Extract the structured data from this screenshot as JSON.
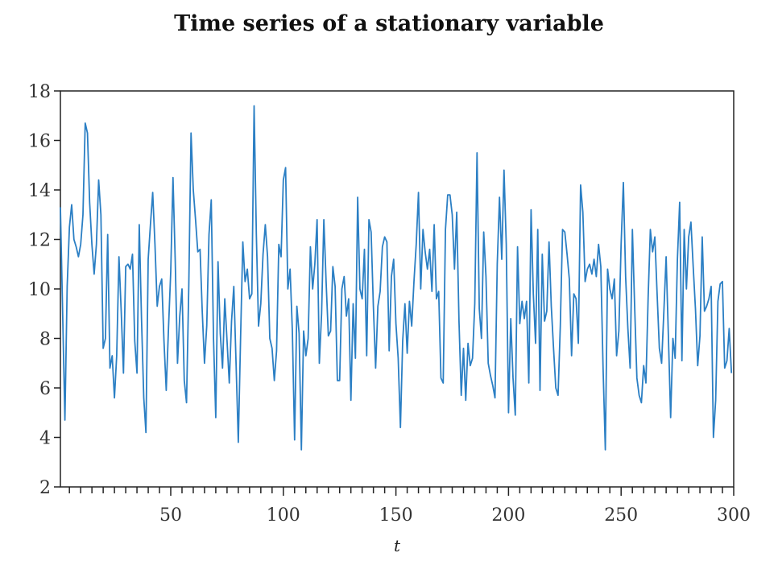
{
  "chart_data": {
    "type": "line",
    "title": "Time series of a stationary variable",
    "xlabel": "t",
    "ylabel": "",
    "xlim": [
      1,
      300
    ],
    "ylim": [
      2,
      18
    ],
    "x_ticks": [
      50,
      100,
      150,
      200,
      250,
      300
    ],
    "y_ticks": [
      2,
      4,
      6,
      8,
      10,
      12,
      14,
      16,
      18
    ],
    "x_minor_tick_step": 5,
    "grid": false,
    "legend": "none",
    "series": [
      {
        "color": "#2b7fc4",
        "x_start": 1,
        "values": [
          13.3,
          9.0,
          4.7,
          10.1,
          12.5,
          13.4,
          12.0,
          11.7,
          11.3,
          11.8,
          13.0,
          16.7,
          16.3,
          13.5,
          11.8,
          10.6,
          11.8,
          14.4,
          13.0,
          7.6,
          8.0,
          12.2,
          6.8,
          7.3,
          5.6,
          7.3,
          11.3,
          9.1,
          6.6,
          10.9,
          11.0,
          10.8,
          11.4,
          7.9,
          6.6,
          12.6,
          8.8,
          5.6,
          4.2,
          11.2,
          12.6,
          13.9,
          11.8,
          9.3,
          10.1,
          10.4,
          7.9,
          5.9,
          8.4,
          10.7,
          14.5,
          11.1,
          7.0,
          8.9,
          10.0,
          6.3,
          5.4,
          10.1,
          16.3,
          14.0,
          12.8,
          11.5,
          11.6,
          9.1,
          7.0,
          8.5,
          12.2,
          13.6,
          8.0,
          4.8,
          11.1,
          8.2,
          6.8,
          9.6,
          7.9,
          6.2,
          8.7,
          10.1,
          7.0,
          3.8,
          8.0,
          11.9,
          10.3,
          10.8,
          9.6,
          9.8,
          17.4,
          12.2,
          8.5,
          9.4,
          11.4,
          12.6,
          11.3,
          8.0,
          7.6,
          6.3,
          7.5,
          11.8,
          11.3,
          14.4,
          14.9,
          10.0,
          10.8,
          8.3,
          3.9,
          9.3,
          8.2,
          3.5,
          8.3,
          7.3,
          8.0,
          11.7,
          10.0,
          11.0,
          12.8,
          7.0,
          9.0,
          12.8,
          10.3,
          8.1,
          8.3,
          10.9,
          10.1,
          6.3,
          6.3,
          10.0,
          10.5,
          8.9,
          9.6,
          5.5,
          9.4,
          7.2,
          13.7,
          10.0,
          9.6,
          11.6,
          7.3,
          12.8,
          12.3,
          9.3,
          6.8,
          9.3,
          9.9,
          11.7,
          12.1,
          11.9,
          7.5,
          10.5,
          11.2,
          8.6,
          7.2,
          4.4,
          7.9,
          9.4,
          7.4,
          9.5,
          8.5,
          10.3,
          11.8,
          13.9,
          10.0,
          12.4,
          11.5,
          10.8,
          11.6,
          9.9,
          12.6,
          9.6,
          9.9,
          6.4,
          6.2,
          12.4,
          13.8,
          13.8,
          13.0,
          10.8,
          13.1,
          8.7,
          5.7,
          7.6,
          5.5,
          7.8,
          6.9,
          7.2,
          9.4,
          15.5,
          9.2,
          8.0,
          12.3,
          10.5,
          7.0,
          6.5,
          6.1,
          5.6,
          11.0,
          13.7,
          11.2,
          14.8,
          11.8,
          5.0,
          8.8,
          6.4,
          4.9,
          11.7,
          8.6,
          9.5,
          8.8,
          9.5,
          6.2,
          13.2,
          9.8,
          7.8,
          12.4,
          5.9,
          11.4,
          8.7,
          9.1,
          11.9,
          9.3,
          7.6,
          6.0,
          5.7,
          8.5,
          12.4,
          12.3,
          11.4,
          10.4,
          7.3,
          9.8,
          9.6,
          7.8,
          14.2,
          13.1,
          10.3,
          10.8,
          11.0,
          10.6,
          11.2,
          10.5,
          11.8,
          10.9,
          6.8,
          3.5,
          10.8,
          10.0,
          9.6,
          10.4,
          7.3,
          8.3,
          11.8,
          14.3,
          10.5,
          8.4,
          6.8,
          12.4,
          9.3,
          6.4,
          5.7,
          5.4,
          6.9,
          6.2,
          9.7,
          12.4,
          11.5,
          12.1,
          9.8,
          7.6,
          7.0,
          9.1,
          11.3,
          8.1,
          4.8,
          8.0,
          7.2,
          11.2,
          13.5,
          7.1,
          12.4,
          10.0,
          12.1,
          12.7,
          10.9,
          9.2,
          6.9,
          8.1,
          12.1,
          9.1,
          9.3,
          9.6,
          10.1,
          4.0,
          5.5,
          9.5,
          10.2,
          10.3,
          6.8,
          7.1,
          8.4,
          6.6
        ]
      }
    ]
  }
}
